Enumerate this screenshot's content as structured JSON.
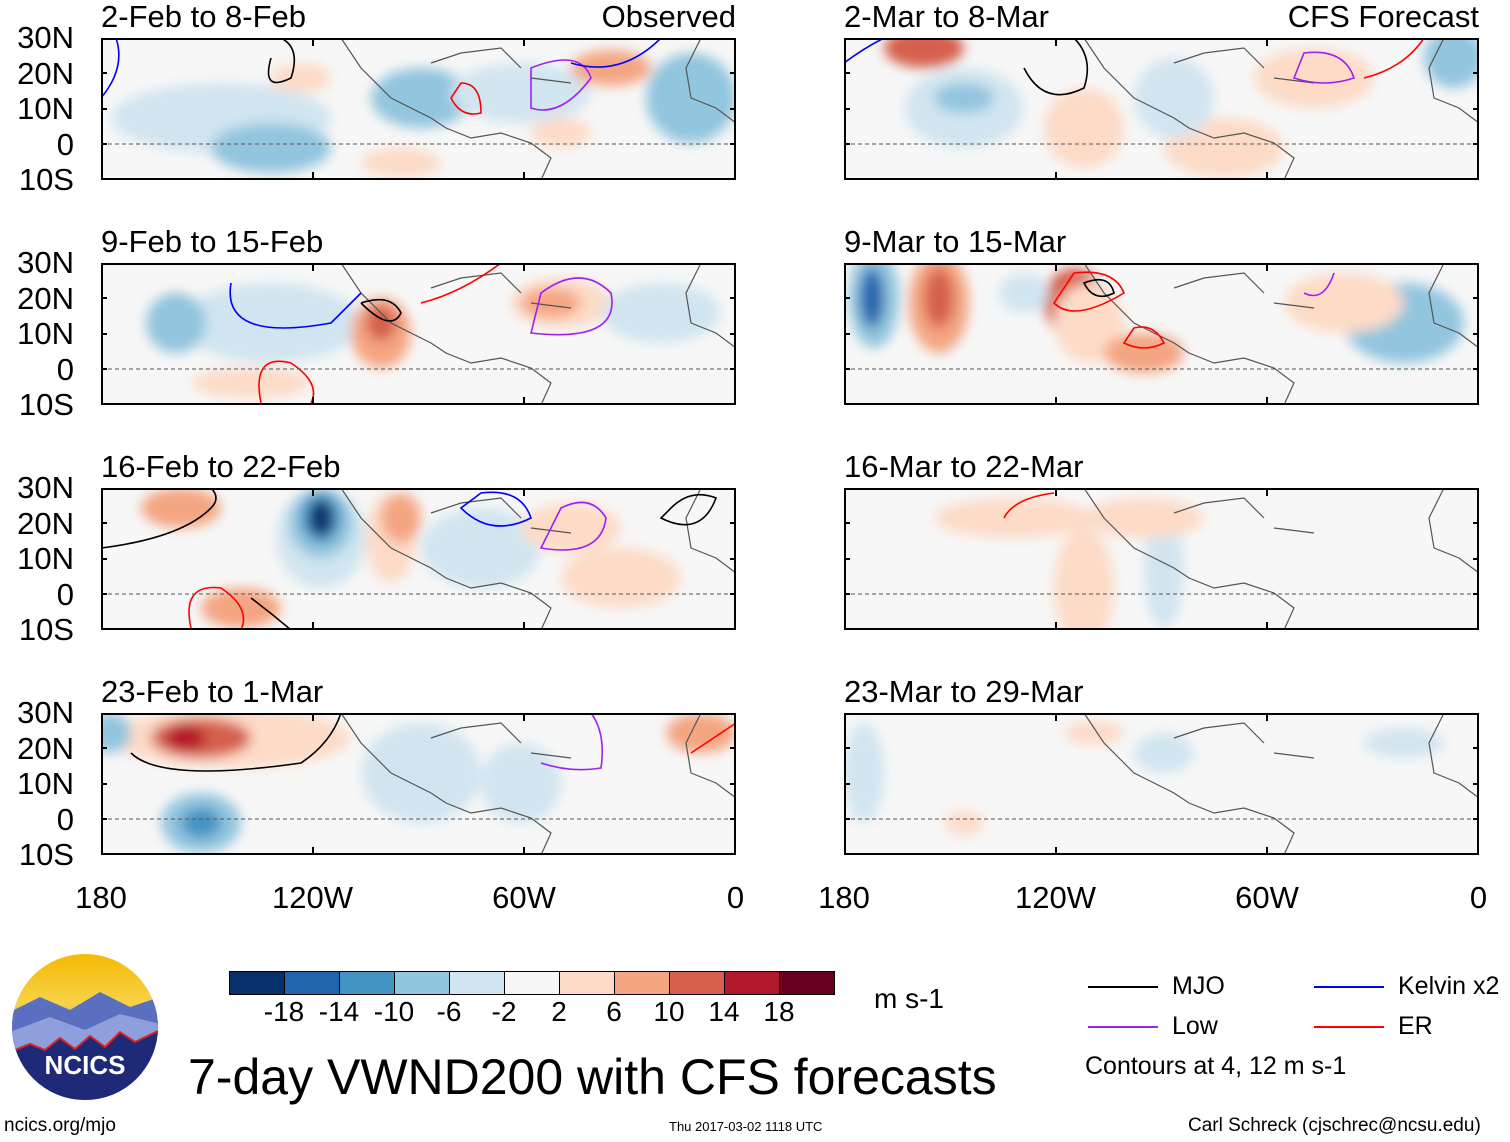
{
  "panels": {
    "left": [
      {
        "title": "2-Feb to 8-Feb",
        "tag": "Observed"
      },
      {
        "title": "9-Feb to 15-Feb"
      },
      {
        "title": "16-Feb to 22-Feb"
      },
      {
        "title": "23-Feb to 1-Mar"
      }
    ],
    "right": [
      {
        "title": "2-Mar to 8-Mar",
        "tag": "CFS Forecast"
      },
      {
        "title": "9-Mar to 15-Mar"
      },
      {
        "title": "16-Mar to 22-Mar"
      },
      {
        "title": "23-Mar to 29-Mar"
      }
    ]
  },
  "axes": {
    "lat_labels": [
      "30N",
      "20N",
      "10N",
      "0",
      "10S"
    ],
    "lon_labels": [
      "180",
      "120W",
      "60W",
      "0"
    ]
  },
  "colorbar": {
    "colors": [
      "#08306b",
      "#2166ac",
      "#4393c3",
      "#92c5de",
      "#d1e5f0",
      "#f7f7f7",
      "#fddbc7",
      "#f4a582",
      "#d6604d",
      "#b2182b",
      "#67001f"
    ],
    "ticks": [
      "-18",
      "-14",
      "-10",
      "-6",
      "-2",
      "2",
      "6",
      "10",
      "14",
      "18"
    ],
    "units": "m s-1"
  },
  "legend": {
    "items": [
      {
        "label": "MJO",
        "color": "#000000"
      },
      {
        "label": "Kelvin x2",
        "color": "#0000ff"
      },
      {
        "label": "Low",
        "color": "#a020f0"
      },
      {
        "label": "ER",
        "color": "#ff0000"
      }
    ],
    "note": "Contours at 4, 12 m s-1"
  },
  "logo": {
    "text": "NCICS"
  },
  "title": "7-day VWND200 with CFS forecasts",
  "footer": {
    "url": "ncics.org/mjo",
    "timestamp": "Thu 2017-03-02 1118 UTC",
    "author": "Carl Schreck (cjschrec@ncsu.edu)"
  },
  "chart_data": {
    "type": "heatmap",
    "title": "7-day VWND200 with CFS forecasts",
    "variable": "200-hPa meridional wind anomaly",
    "units": "m s-1",
    "xlim": [
      "180",
      "0"
    ],
    "ylim": [
      "10S",
      "30N"
    ],
    "color_levels": [
      -18,
      -14,
      -10,
      -6,
      -2,
      2,
      6,
      10,
      14,
      18
    ],
    "contours": "MJO, Kelvin x2, Low, ER at 4, 12 m s-1"
  }
}
